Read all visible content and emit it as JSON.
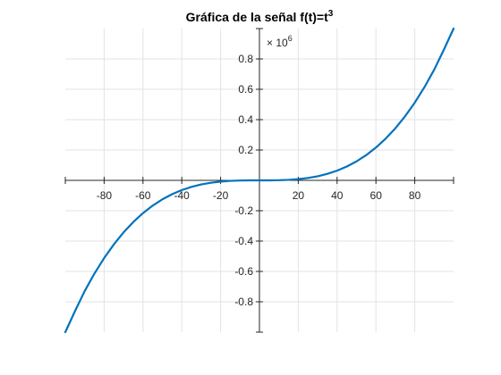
{
  "chart_data": {
    "type": "line",
    "title": "Gráfica de la señal f(t)=t",
    "title_superscript": "3",
    "xlabel": "",
    "ylabel": "",
    "xlim": [
      -100,
      100
    ],
    "ylim": [
      -1000000,
      1000000
    ],
    "y_exponent_label": "× 10",
    "y_exponent_power": "6",
    "x_ticks": [
      {
        "value": -80,
        "label": "-80"
      },
      {
        "value": -60,
        "label": "-60"
      },
      {
        "value": -40,
        "label": "-40"
      },
      {
        "value": -20,
        "label": "-20"
      },
      {
        "value": 20,
        "label": "20"
      },
      {
        "value": 40,
        "label": "40"
      },
      {
        "value": 60,
        "label": "60"
      },
      {
        "value": 80,
        "label": "80"
      }
    ],
    "y_ticks": [
      {
        "value": 800000,
        "label": "0.8"
      },
      {
        "value": 600000,
        "label": "0.6"
      },
      {
        "value": 400000,
        "label": "0.4"
      },
      {
        "value": 200000,
        "label": "0.2"
      },
      {
        "value": -200000,
        "label": "-0.2"
      },
      {
        "value": -400000,
        "label": "-0.4"
      },
      {
        "value": -600000,
        "label": "-0.6"
      },
      {
        "value": -800000,
        "label": "-0.8"
      }
    ],
    "grid": true,
    "line_color": "#0072BD",
    "series": [
      {
        "x": [
          -100,
          -90,
          -80,
          -70,
          -60,
          -50,
          -40,
          -30,
          -20,
          -10,
          0,
          10,
          20,
          30,
          40,
          50,
          60,
          70,
          80,
          90,
          100
        ],
        "values": [
          -1000000,
          -729000,
          -512000,
          -343000,
          -216000,
          -125000,
          -64000,
          -27000,
          -8000,
          -1000,
          0,
          1000,
          8000,
          27000,
          64000,
          125000,
          216000,
          343000,
          512000,
          729000,
          1000000
        ]
      }
    ]
  }
}
